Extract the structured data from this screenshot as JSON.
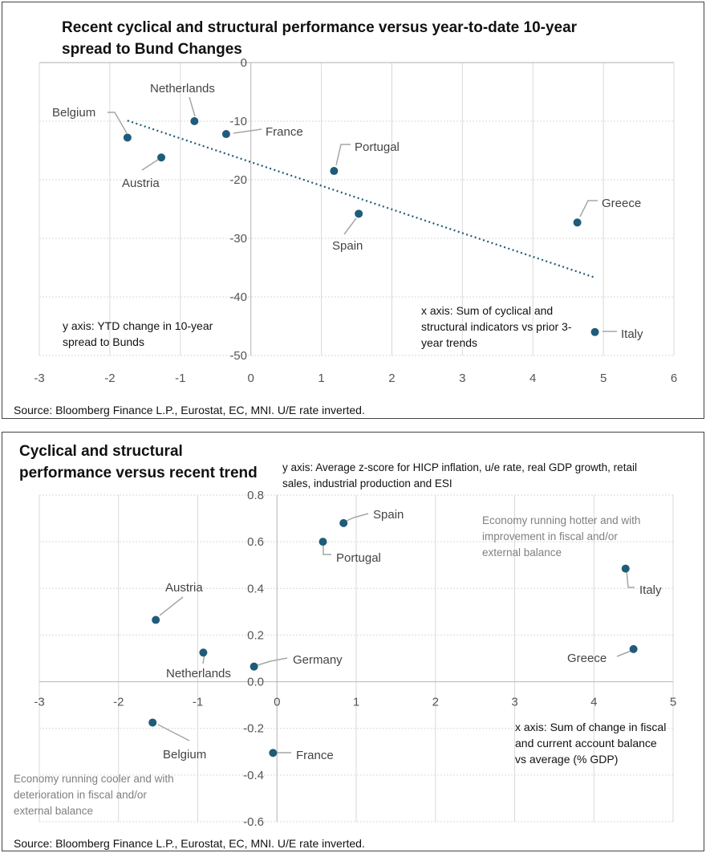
{
  "charts": [
    {
      "title_line1": "Recent cyclical and structural performance versus year-to-date 10-year",
      "title_line2": "spread to Bund Changes",
      "y_note": [
        "y axis: YTD change in 10-year",
        "spread to Bunds"
      ],
      "x_note": [
        "x axis: Sum of cyclical and",
        "structural indicators vs prior 3-",
        "year trends"
      ],
      "source": "Source: Bloomberg Finance L.P., Eurostat, EC, MNI. U/E rate inverted."
    },
    {
      "title_line1": "Cyclical and structural",
      "title_line2": "performance versus  recent trend",
      "y_note": [
        "y axis: Average z-score for HICP inflation, u/e rate,  real GDP growth, retail",
        "sales, industrial production and ESI"
      ],
      "x_note": [
        "x axis: Sum of change in fiscal",
        "and current account balance",
        "vs average (% GDP)"
      ],
      "hot_note": [
        "Economy running hotter and with",
        "improvement in fiscal and/or",
        "external balance"
      ],
      "cool_note": [
        "Economy running cooler and with",
        "deterioration in fiscal and/or",
        "external balance"
      ],
      "source": "Source: Bloomberg Finance L.P., Eurostat, EC, MNI. U/E rate inverted."
    }
  ],
  "chart_data": [
    {
      "type": "scatter",
      "title": "Recent cyclical and structural performance versus year-to-date 10-year spread to Bund Changes",
      "xlabel": "x axis: Sum of cyclical and structural indicators vs prior 3-year trends",
      "ylabel": "y axis: YTD change in 10-year spread to Bunds",
      "xlim": [
        -3,
        6
      ],
      "ylim": [
        -50,
        0
      ],
      "xticks": [
        "-3",
        "-2",
        "-1",
        "0",
        "1",
        "2",
        "3",
        "4",
        "5",
        "6"
      ],
      "yticks": [
        "0",
        "-10",
        "-20",
        "-30",
        "-40",
        "-50"
      ],
      "points": [
        {
          "name": "Belgium",
          "x": -1.75,
          "y": -12.8
        },
        {
          "name": "Netherlands",
          "x": -0.8,
          "y": -10.0
        },
        {
          "name": "France",
          "x": -0.35,
          "y": -12.2
        },
        {
          "name": "Austria",
          "x": -1.27,
          "y": -16.2
        },
        {
          "name": "Portugal",
          "x": 1.18,
          "y": -18.5
        },
        {
          "name": "Spain",
          "x": 1.53,
          "y": -25.8
        },
        {
          "name": "Greece",
          "x": 4.63,
          "y": -27.3
        },
        {
          "name": "Italy",
          "x": 4.88,
          "y": -46.0
        }
      ],
      "trendline": {
        "x": [
          -1.75,
          4.88
        ],
        "y": [
          -9.9,
          -36.7
        ]
      }
    },
    {
      "type": "scatter",
      "title": "Cyclical and structural performance versus recent trend",
      "xlabel": "x axis: Sum of change in fiscal and current account balance vs average (% GDP)",
      "ylabel": "y axis: Average z-score for HICP inflation, u/e rate, real GDP growth, retail sales, industrial production and ESI",
      "xlim": [
        -3,
        5
      ],
      "ylim": [
        -0.6,
        0.8
      ],
      "xticks": [
        "-3",
        "-2",
        "-1",
        "0",
        "1",
        "2",
        "3",
        "4",
        "5"
      ],
      "yticks": [
        "0.8",
        "0.6",
        "0.4",
        "0.2",
        "0.0",
        "-0.2",
        "-0.4",
        "-0.6"
      ],
      "points": [
        {
          "name": "Spain",
          "x": 0.84,
          "y": 0.68
        },
        {
          "name": "Portugal",
          "x": 0.58,
          "y": 0.6
        },
        {
          "name": "Italy",
          "x": 4.4,
          "y": 0.485
        },
        {
          "name": "Austria",
          "x": -1.53,
          "y": 0.265
        },
        {
          "name": "Netherlands",
          "x": -0.93,
          "y": 0.125
        },
        {
          "name": "Germany",
          "x": -0.29,
          "y": 0.065
        },
        {
          "name": "Greece",
          "x": 4.5,
          "y": 0.14
        },
        {
          "name": "Belgium",
          "x": -1.57,
          "y": -0.175
        },
        {
          "name": "France",
          "x": -0.05,
          "y": -0.305
        }
      ]
    }
  ]
}
